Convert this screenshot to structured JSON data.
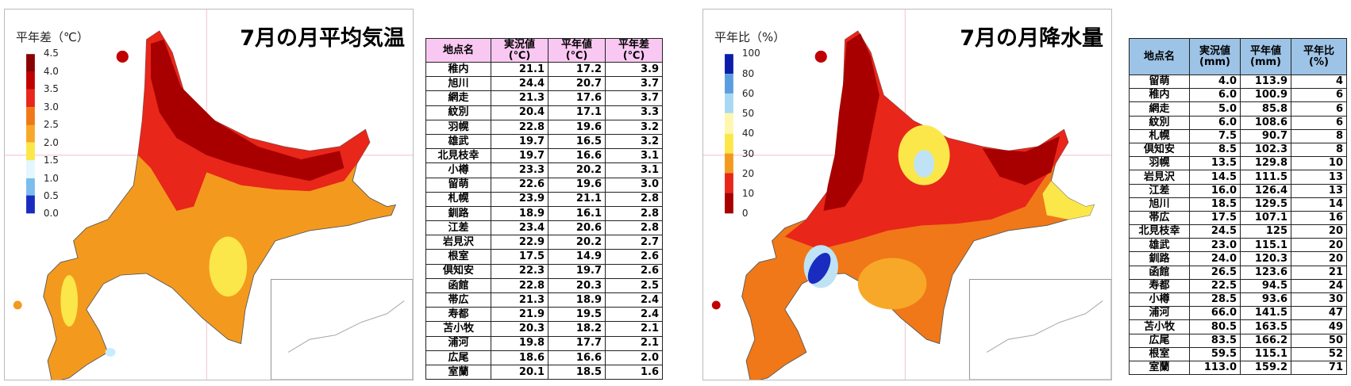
{
  "temperature_map": {
    "title": "7月の月平均気温",
    "legend_title": "平年差（℃）",
    "legend_labels": [
      "4.5",
      "4.0",
      "3.5",
      "3.0",
      "2.5",
      "2.0",
      "1.5",
      "1.0",
      "0.5",
      "0.0"
    ]
  },
  "temperature_table": {
    "headers": [
      [
        "地点名"
      ],
      [
        "実況値",
        "(℃)"
      ],
      [
        "平年値",
        "(℃)"
      ],
      [
        "平年差",
        "(℃)"
      ]
    ],
    "rows": [
      [
        "稚内",
        "21.1",
        "17.2",
        "3.9"
      ],
      [
        "旭川",
        "24.4",
        "20.7",
        "3.7"
      ],
      [
        "網走",
        "21.3",
        "17.6",
        "3.7"
      ],
      [
        "紋別",
        "20.4",
        "17.1",
        "3.3"
      ],
      [
        "羽幌",
        "22.8",
        "19.6",
        "3.2"
      ],
      [
        "雄武",
        "19.7",
        "16.5",
        "3.2"
      ],
      [
        "北見枝幸",
        "19.7",
        "16.6",
        "3.1"
      ],
      [
        "小樽",
        "23.3",
        "20.2",
        "3.1"
      ],
      [
        "留萌",
        "22.6",
        "19.6",
        "3.0"
      ],
      [
        "札幌",
        "23.9",
        "21.1",
        "2.8"
      ],
      [
        "釧路",
        "18.9",
        "16.1",
        "2.8"
      ],
      [
        "江差",
        "23.4",
        "20.6",
        "2.8"
      ],
      [
        "岩見沢",
        "22.9",
        "20.2",
        "2.7"
      ],
      [
        "根室",
        "17.5",
        "14.9",
        "2.6"
      ],
      [
        "倶知安",
        "22.3",
        "19.7",
        "2.6"
      ],
      [
        "函館",
        "22.8",
        "20.3",
        "2.5"
      ],
      [
        "帯広",
        "21.3",
        "18.9",
        "2.4"
      ],
      [
        "寿都",
        "21.9",
        "19.5",
        "2.4"
      ],
      [
        "苫小牧",
        "20.3",
        "18.2",
        "2.1"
      ],
      [
        "浦河",
        "19.8",
        "17.7",
        "2.1"
      ],
      [
        "広尾",
        "18.6",
        "16.6",
        "2.0"
      ],
      [
        "室蘭",
        "20.1",
        "18.5",
        "1.6"
      ]
    ]
  },
  "precipitation_map": {
    "title": "7月の月降水量",
    "legend_title": "平年比（%）",
    "legend_labels": [
      "100",
      "80",
      "60",
      "50",
      "40",
      "30",
      "20",
      "10",
      "0"
    ]
  },
  "precipitation_table": {
    "headers": [
      [
        "地点名"
      ],
      [
        "実況値",
        "(mm)"
      ],
      [
        "平年値",
        "(mm)"
      ],
      [
        "平年比(%)"
      ]
    ],
    "rows": [
      [
        "留萌",
        "4.0",
        "113.9",
        "4"
      ],
      [
        "稚内",
        "6.0",
        "100.9",
        "6"
      ],
      [
        "網走",
        "5.0",
        "85.8",
        "6"
      ],
      [
        "紋別",
        "6.0",
        "108.6",
        "6"
      ],
      [
        "札幌",
        "7.5",
        "90.7",
        "8"
      ],
      [
        "倶知安",
        "8.5",
        "102.3",
        "8"
      ],
      [
        "羽幌",
        "13.5",
        "129.8",
        "10"
      ],
      [
        "岩見沢",
        "14.5",
        "111.5",
        "13"
      ],
      [
        "江差",
        "16.0",
        "126.4",
        "13"
      ],
      [
        "旭川",
        "18.5",
        "129.5",
        "14"
      ],
      [
        "帯広",
        "17.5",
        "107.1",
        "16"
      ],
      [
        "北見枝幸",
        "24.5",
        "125",
        "20"
      ],
      [
        "雄武",
        "23.0",
        "115.1",
        "20"
      ],
      [
        "釧路",
        "24.0",
        "120.3",
        "20"
      ],
      [
        "函館",
        "26.5",
        "123.6",
        "21"
      ],
      [
        "寿都",
        "22.5",
        "94.5",
        "24"
      ],
      [
        "小樽",
        "28.5",
        "93.6",
        "30"
      ],
      [
        "浦河",
        "66.0",
        "141.5",
        "47"
      ],
      [
        "苫小牧",
        "80.5",
        "163.5",
        "49"
      ],
      [
        "広尾",
        "83.5",
        "166.2",
        "50"
      ],
      [
        "根室",
        "59.5",
        "115.1",
        "52"
      ],
      [
        "室蘭",
        "113.0",
        "159.2",
        "71"
      ]
    ]
  }
}
